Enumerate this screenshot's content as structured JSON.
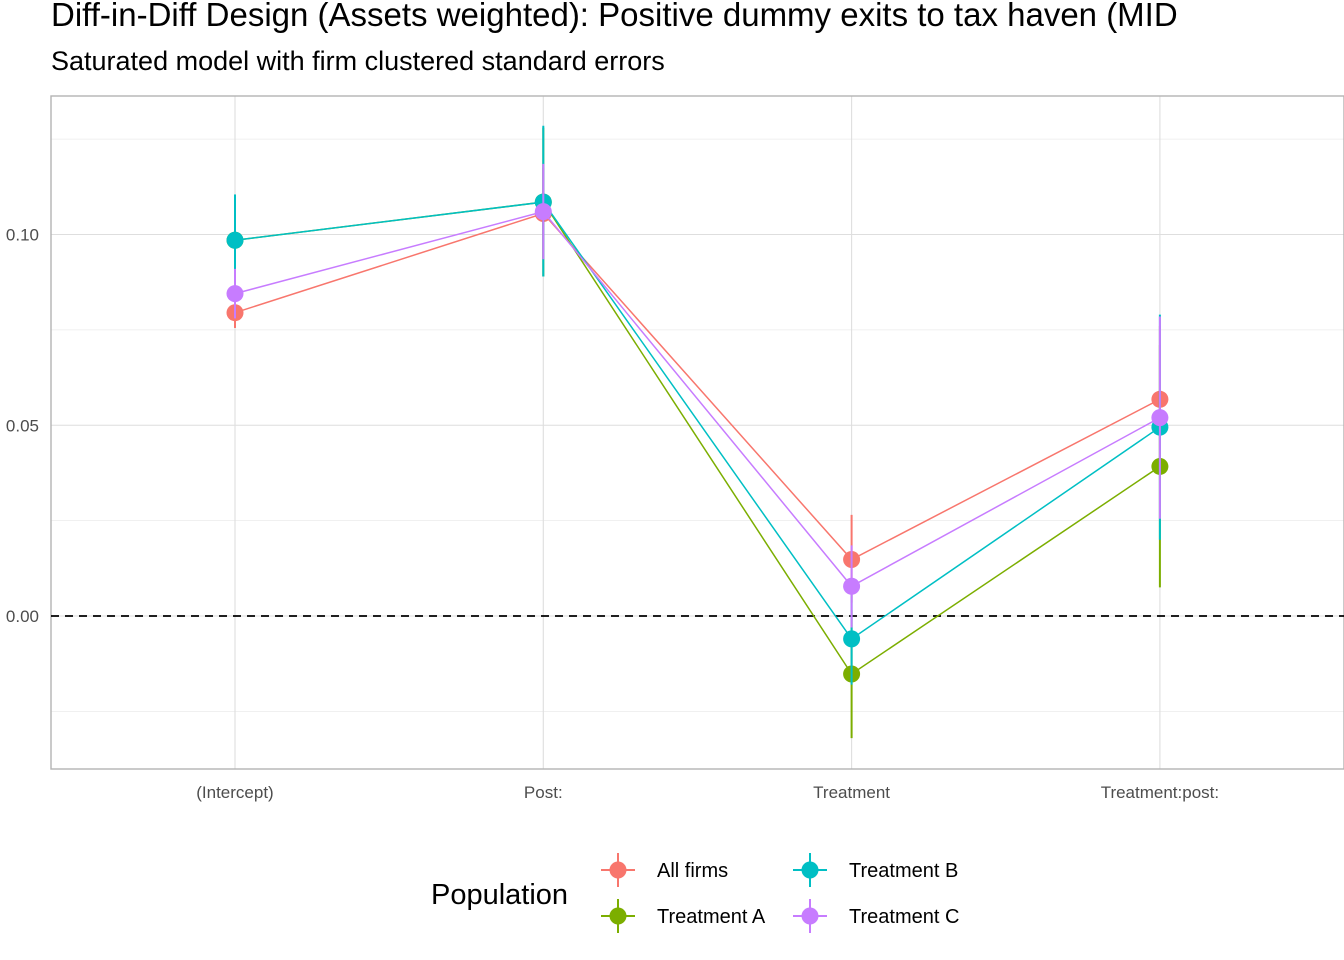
{
  "chart_data": {
    "type": "scatter",
    "title": "Diff-in-Diff Design (Assets weighted): Positive dummy exits to tax haven (MID",
    "subtitle": "Saturated model with firm clustered standard errors",
    "xlabel": "",
    "ylabel": "",
    "categories": [
      "(Intercept)",
      "Post:",
      "Treatment",
      "Treatment:post:"
    ],
    "ylim": [
      -0.04,
      0.136
    ],
    "yticks": [
      0.0,
      0.05,
      0.1
    ],
    "ytick_labels": [
      "0.00",
      "0.05",
      "0.10"
    ],
    "reference_line": {
      "y": 0,
      "style": "dashed"
    },
    "grid": true,
    "points_connected": true,
    "legend": {
      "title": "Population",
      "position": "bottom"
    },
    "series": [
      {
        "name": "All firms",
        "color": "#F8766D",
        "values": [
          0.0795,
          0.1055,
          0.0148,
          0.0568
        ],
        "lower": [
          0.0755,
          0.0935,
          0.0035,
          0.0375
        ],
        "upper": [
          0.0835,
          0.1175,
          0.0265,
          0.076
        ]
      },
      {
        "name": "Treatment A",
        "color": "#7CAE00",
        "values": [
          0.0985,
          0.1085,
          -0.0152,
          0.0392
        ],
        "lower": [
          0.0875,
          0.089,
          -0.032,
          0.0075
        ],
        "upper": [
          0.11,
          0.128,
          0.0015,
          0.071
        ]
      },
      {
        "name": "Treatment B",
        "color": "#00BFC4",
        "values": [
          0.0985,
          0.1085,
          -0.006,
          0.0495
        ],
        "lower": [
          0.087,
          0.089,
          -0.018,
          0.02
        ],
        "upper": [
          0.1105,
          0.1285,
          0.006,
          0.079
        ]
      },
      {
        "name": "Treatment C",
        "color": "#C77CFF",
        "values": [
          0.0845,
          0.106,
          0.0078,
          0.052
        ],
        "lower": [
          0.078,
          0.0935,
          -0.003,
          0.0255
        ],
        "upper": [
          0.091,
          0.1185,
          0.0185,
          0.0785
        ]
      }
    ]
  }
}
